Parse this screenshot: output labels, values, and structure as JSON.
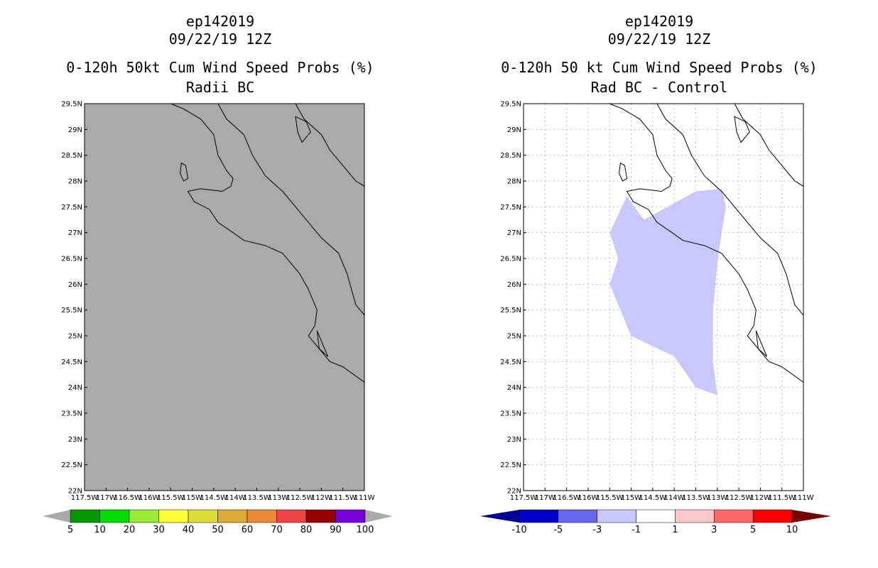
{
  "chart_data": [
    {
      "type": "heatmap",
      "panel": "left",
      "title_lines": [
        "ep142019",
        "09/22/19 12Z",
        "0-120h 50kt Cum Wind Speed Probs (%)",
        "Radii BC"
      ],
      "lon_range": [
        -117.5,
        -111
      ],
      "lat_range": [
        22,
        29.5
      ],
      "x_tick_labels": [
        "117.5W",
        "117W",
        "116.5W",
        "116W",
        "115.5W",
        "115W",
        "114.5W",
        "114W",
        "113.5W",
        "113W",
        "112.5W",
        "112W",
        "111.5W",
        "111W"
      ],
      "y_tick_labels": [
        "22N",
        "22.5N",
        "23N",
        "23.5N",
        "24N",
        "24.5N",
        "25N",
        "25.5N",
        "26N",
        "26.5N",
        "27N",
        "27.5N",
        "28N",
        "28.5N",
        "29N",
        "29.5N"
      ],
      "grid": false,
      "field": "undefined (grey fill)",
      "background_color": "#aaaaaa",
      "colorbar": {
        "labels": [
          "5",
          "10",
          "20",
          "30",
          "40",
          "50",
          "60",
          "70",
          "80",
          "90",
          "100"
        ],
        "colors": [
          "#009900",
          "#00dd00",
          "#99ee33",
          "#ffff33",
          "#dddd33",
          "#ddaa33",
          "#ee8833",
          "#ee4444",
          "#990000",
          "#7700dd"
        ],
        "end_color": "#aaaaaa"
      }
    },
    {
      "type": "heatmap",
      "panel": "right",
      "title_lines": [
        "ep142019",
        "09/22/19 12Z",
        "0-120h 50 kt Cum Wind Speed Probs (%)",
        "Rad BC - Control"
      ],
      "lon_range": [
        -117.5,
        -111
      ],
      "lat_range": [
        22,
        29.5
      ],
      "x_tick_labels": [
        "117.5W",
        "117W",
        "116.5W",
        "116W",
        "115.5W",
        "115W",
        "114.5W",
        "114W",
        "113.5W",
        "113W",
        "112.5W",
        "112W",
        "111.5W",
        "111W"
      ],
      "y_tick_labels": [
        "22N",
        "22.5N",
        "23N",
        "23.5N",
        "24N",
        "24.5N",
        "25N",
        "25.5N",
        "26N",
        "26.5N",
        "27N",
        "27.5N",
        "28N",
        "28.5N",
        "29N",
        "29.5N"
      ],
      "grid": true,
      "background_color": "#ffffff",
      "shaded_region": {
        "category": "-3 to -1",
        "color": "#c8c8ff",
        "polygon_lonlat": [
          [
            -115.1,
            27.7
          ],
          [
            -115.5,
            27.0
          ],
          [
            -115.3,
            26.5
          ],
          [
            -115.5,
            26.0
          ],
          [
            -115.3,
            25.6
          ],
          [
            -115.0,
            25.0
          ],
          [
            -114.0,
            24.6
          ],
          [
            -113.5,
            24.0
          ],
          [
            -113.0,
            23.85
          ],
          [
            -113.1,
            24.5
          ],
          [
            -113.1,
            25.5
          ],
          [
            -113.0,
            26.4
          ],
          [
            -112.9,
            27.0
          ],
          [
            -112.8,
            27.5
          ],
          [
            -112.9,
            27.85
          ],
          [
            -113.5,
            27.8
          ],
          [
            -114.7,
            27.25
          ]
        ]
      },
      "colorbar": {
        "labels": [
          "-10",
          "-5",
          "-3",
          "-1",
          "1",
          "3",
          "5",
          "10"
        ],
        "colors": [
          "#0000cc",
          "#6666ee",
          "#c8c8ff",
          "#ffffff",
          "#ffc8c8",
          "#ff6666",
          "#ff0000"
        ],
        "low_end_color": "#000099",
        "high_end_color": "#770000"
      }
    }
  ],
  "coastline_lonlat": {
    "baja_pacific": [
      [
        -115.5,
        29.5
      ],
      [
        -115.2,
        29.4
      ],
      [
        -114.8,
        29.2
      ],
      [
        -114.5,
        28.9
      ],
      [
        -114.4,
        28.5
      ],
      [
        -114.2,
        28.2
      ],
      [
        -114.05,
        28.05
      ],
      [
        -114.1,
        27.9
      ],
      [
        -114.3,
        27.8
      ],
      [
        -114.8,
        27.85
      ],
      [
        -115.1,
        27.8
      ],
      [
        -114.95,
        27.6
      ],
      [
        -114.6,
        27.45
      ],
      [
        -114.4,
        27.2
      ],
      [
        -114.05,
        27.0
      ],
      [
        -113.8,
        26.85
      ],
      [
        -113.3,
        26.75
      ],
      [
        -112.9,
        26.6
      ],
      [
        -112.5,
        26.2
      ],
      [
        -112.3,
        25.9
      ],
      [
        -112.1,
        25.5
      ],
      [
        -112.15,
        25.2
      ],
      [
        -112.3,
        25.0
      ],
      [
        -112.1,
        24.8
      ],
      [
        -111.8,
        24.5
      ],
      [
        -111.5,
        24.4
      ],
      [
        -111.0,
        24.1
      ]
    ],
    "baja_gulf": [
      [
        -114.4,
        29.5
      ],
      [
        -114.2,
        29.2
      ],
      [
        -113.8,
        28.9
      ],
      [
        -113.6,
        28.5
      ],
      [
        -113.3,
        28.1
      ],
      [
        -112.9,
        27.8
      ],
      [
        -112.6,
        27.5
      ],
      [
        -112.3,
        27.2
      ],
      [
        -112.0,
        26.9
      ],
      [
        -111.6,
        26.6
      ],
      [
        -111.4,
        26.2
      ],
      [
        -111.3,
        25.9
      ],
      [
        -111.2,
        25.6
      ],
      [
        -111.0,
        25.4
      ]
    ],
    "mainland": [
      [
        -112.6,
        29.5
      ],
      [
        -112.4,
        29.2
      ],
      [
        -112.0,
        28.9
      ],
      [
        -111.8,
        28.6
      ],
      [
        -111.5,
        28.3
      ],
      [
        -111.2,
        28.0
      ],
      [
        -111.0,
        27.9
      ]
    ],
    "isla_cedros": [
      [
        -115.25,
        28.35
      ],
      [
        -115.15,
        28.3
      ],
      [
        -115.1,
        28.05
      ],
      [
        -115.2,
        28.0
      ],
      [
        -115.28,
        28.15
      ]
    ],
    "isla_tiburon": [
      [
        -112.6,
        29.25
      ],
      [
        -112.35,
        29.15
      ],
      [
        -112.25,
        28.95
      ],
      [
        -112.45,
        28.75
      ],
      [
        -112.55,
        28.95
      ]
    ],
    "magdalena": [
      [
        -112.1,
        25.1
      ],
      [
        -111.95,
        24.8
      ],
      [
        -111.85,
        24.6
      ],
      [
        -112.05,
        24.75
      ]
    ]
  }
}
